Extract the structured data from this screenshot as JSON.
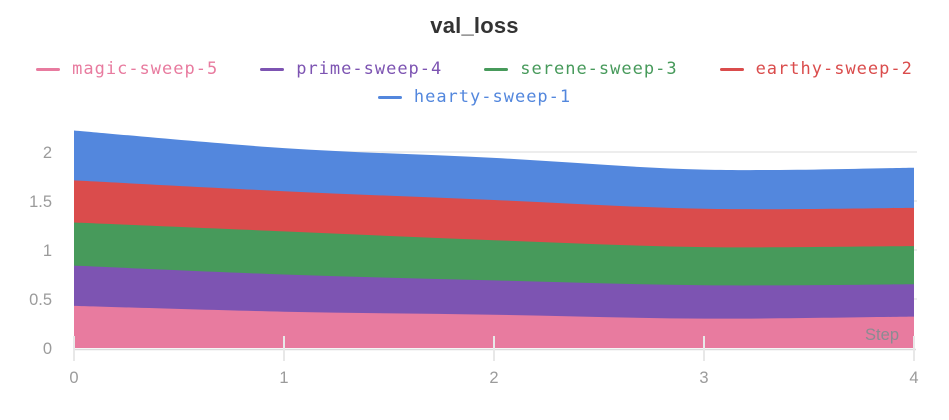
{
  "page": {
    "background": "#ffffff"
  },
  "chart_data": {
    "type": "area",
    "stacked": true,
    "title": "val_loss",
    "xlabel": "Step",
    "ylabel": "",
    "x": [
      0,
      1,
      2,
      3,
      4
    ],
    "series": [
      {
        "name": "magic-sweep-5",
        "color": "#E87B9F",
        "values": [
          0.43,
          0.37,
          0.34,
          0.3,
          0.32
        ]
      },
      {
        "name": "prime-sweep-4",
        "color": "#7D54B2",
        "values": [
          0.41,
          0.38,
          0.35,
          0.34,
          0.33
        ]
      },
      {
        "name": "serene-sweep-3",
        "color": "#479A5B",
        "values": [
          0.44,
          0.44,
          0.41,
          0.39,
          0.39
        ]
      },
      {
        "name": "earthy-sweep-2",
        "color": "#DA4C4C",
        "values": [
          0.43,
          0.41,
          0.41,
          0.39,
          0.39
        ]
      },
      {
        "name": "hearty-sweep-1",
        "color": "#5387DD",
        "values": [
          0.51,
          0.44,
          0.43,
          0.4,
          0.41
        ]
      }
    ],
    "stacked_totals": [
      2.22,
      2.04,
      1.94,
      1.82,
      1.84
    ],
    "xlim": [
      0,
      4
    ],
    "ylim": [
      0,
      2.26
    ],
    "xticks": {
      "values": [
        0,
        1,
        2,
        3,
        4
      ],
      "labels": [
        "0",
        "1",
        "2",
        "3",
        "4"
      ]
    },
    "yticks": {
      "values": [
        0,
        0.5,
        1,
        1.5,
        2
      ],
      "labels": [
        "0",
        "0.5",
        "1",
        "1.5",
        "2"
      ]
    },
    "grid": true,
    "legend_position": "top",
    "curve": "smooth",
    "colors": {
      "title_text": "#333333",
      "axis_tick_text": "#9b9b9b",
      "step_label_text": "#8b8b92",
      "gridline": "#ededed",
      "axis_line": "#dcdcdc",
      "tick_mark": "#e8e8e8",
      "background": "#ffffff"
    }
  }
}
